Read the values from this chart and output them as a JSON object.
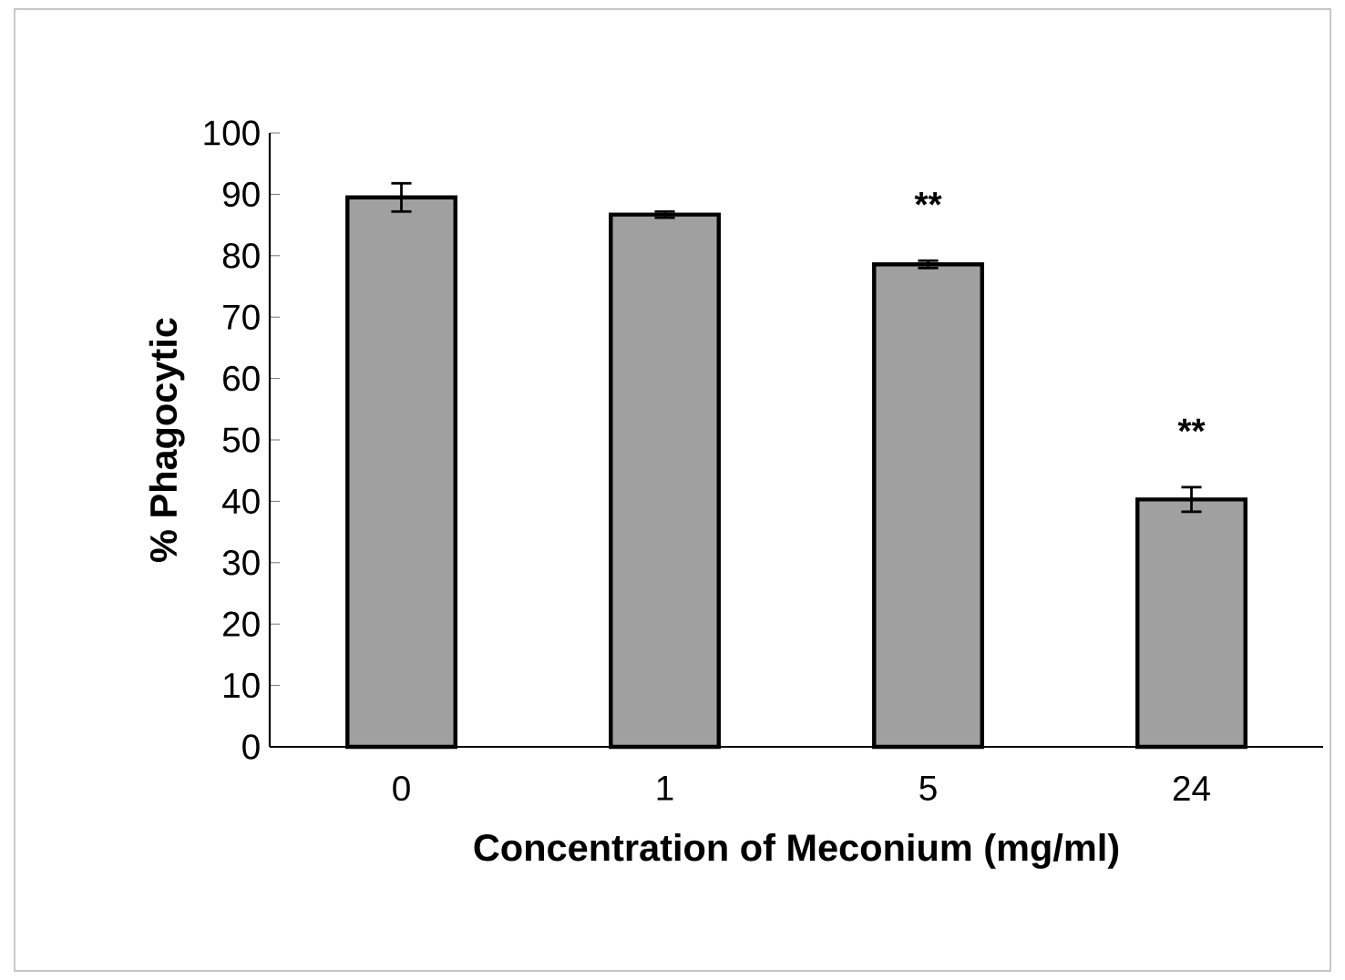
{
  "chart_data": {
    "type": "bar",
    "xlabel": "Concentration of Meconium (mg/ml)",
    "ylabel": "% Phagocytic",
    "categories": [
      "0",
      "1",
      "5",
      "24"
    ],
    "values": [
      89.5,
      86.7,
      78.6,
      40.3
    ],
    "errors": [
      2.3,
      0.5,
      0.6,
      2
    ],
    "color": "#a0a0a0",
    "ylim": [
      0,
      100
    ],
    "yticks": [
      0,
      10,
      20,
      30,
      40,
      50,
      60,
      70,
      80,
      90,
      100
    ],
    "annotations": [
      "**",
      "**"
    ]
  }
}
